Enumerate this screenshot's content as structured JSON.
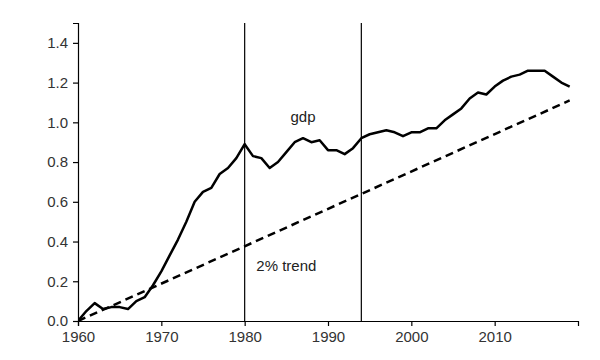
{
  "chart_data": {
    "type": "line",
    "x": [
      1960,
      1961,
      1962,
      1963,
      1964,
      1965,
      1966,
      1967,
      1968,
      1969,
      1970,
      1971,
      1972,
      1973,
      1974,
      1975,
      1976,
      1977,
      1978,
      1979,
      1980,
      1981,
      1982,
      1983,
      1984,
      1985,
      1986,
      1987,
      1988,
      1989,
      1990,
      1991,
      1992,
      1993,
      1994,
      1995,
      1996,
      1997,
      1998,
      1999,
      2000,
      2001,
      2002,
      2003,
      2004,
      2005,
      2006,
      2007,
      2008,
      2009,
      2010,
      2011,
      2012,
      2013,
      2014,
      2015,
      2016,
      2017,
      2018,
      2019
    ],
    "series": [
      {
        "name": "gdp",
        "color": "#000000",
        "line_style": "solid",
        "values": [
          0.0,
          0.05,
          0.09,
          0.06,
          0.07,
          0.07,
          0.06,
          0.1,
          0.12,
          0.18,
          0.25,
          0.33,
          0.41,
          0.5,
          0.6,
          0.65,
          0.67,
          0.74,
          0.77,
          0.82,
          0.89,
          0.83,
          0.82,
          0.77,
          0.8,
          0.85,
          0.9,
          0.92,
          0.9,
          0.91,
          0.86,
          0.86,
          0.84,
          0.87,
          0.92,
          0.94,
          0.95,
          0.96,
          0.95,
          0.93,
          0.95,
          0.95,
          0.97,
          0.97,
          1.01,
          1.04,
          1.07,
          1.12,
          1.15,
          1.14,
          1.18,
          1.21,
          1.23,
          1.24,
          1.26,
          1.26,
          1.26,
          1.23,
          1.2,
          1.18
        ]
      },
      {
        "name": "2% trend",
        "color": "#000000",
        "line_style": "dashed",
        "x": [
          1960,
          2019
        ],
        "values": [
          0.0,
          1.11
        ]
      }
    ],
    "vertical_lines": [
      1980,
      1994
    ],
    "annotations": [
      {
        "text": "gdp",
        "x": 1987,
        "y": 1.02
      },
      {
        "text": "2% trend",
        "x": 1985,
        "y": 0.27
      }
    ],
    "xlim": [
      1960,
      2020
    ],
    "xticks": [
      1960,
      1970,
      1980,
      1990,
      2000,
      2010
    ],
    "ylim": [
      0,
      1.5
    ],
    "yticks": [
      {
        "value": 0,
        "label": "0.0"
      },
      0.2,
      0.4,
      0.6,
      0.8,
      {
        "value": 1,
        "label": "1.0"
      },
      1.2,
      1.4
    ],
    "grid": false,
    "legend": "none"
  }
}
